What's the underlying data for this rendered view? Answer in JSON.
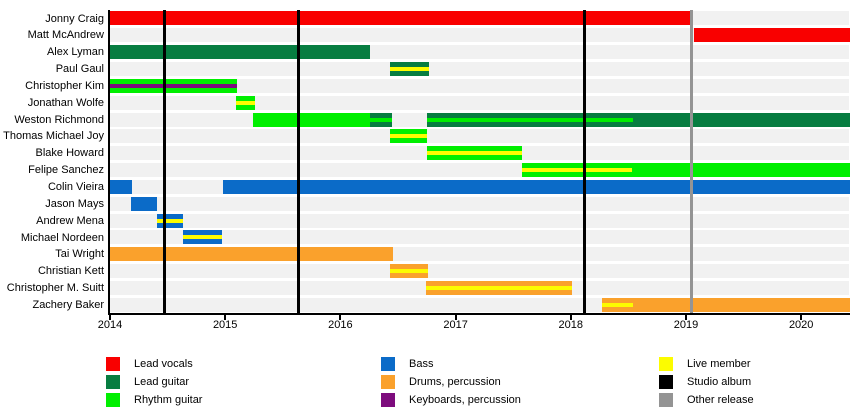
{
  "chart_data": {
    "type": "bar",
    "subtype": "band-membership-timeline-gantt",
    "title": "",
    "xlabel": "",
    "ylabel": "",
    "xlim": [
      2014.0,
      2020.42
    ],
    "x_ticks": [
      2014,
      2015,
      2016,
      2017,
      2018,
      2019,
      2020
    ],
    "grid": false,
    "members": [
      {
        "name": "Jonny Craig",
        "segments": [
          {
            "start": 2014.0,
            "end": 2019.05,
            "role": "lead_vocals"
          }
        ]
      },
      {
        "name": "Matt McAndrew",
        "segments": [
          {
            "start": 2019.07,
            "end": 2020.42,
            "role": "lead_vocals"
          }
        ]
      },
      {
        "name": "Alex Lyman",
        "segments": [
          {
            "start": 2014.0,
            "end": 2016.26,
            "role": "lead_guitar"
          }
        ]
      },
      {
        "name": "Paul Gaul",
        "segments": [
          {
            "start": 2016.43,
            "end": 2016.77,
            "role": "lead_guitar",
            "overlay": "live"
          }
        ]
      },
      {
        "name": "Christopher Kim",
        "segments": [
          {
            "start": 2014.0,
            "end": 2015.1,
            "role": "rhythm_guitar",
            "overlay": "keyboards"
          }
        ]
      },
      {
        "name": "Jonathan Wolfe",
        "segments": [
          {
            "start": 2015.09,
            "end": 2015.26,
            "role": "rhythm_guitar",
            "overlay": "live"
          }
        ]
      },
      {
        "name": "Weston Richmond",
        "segments": [
          {
            "start": 2015.24,
            "end": 2016.26,
            "role": "rhythm_guitar"
          },
          {
            "start": 2016.26,
            "end": 2016.45,
            "role": "lead_guitar",
            "overlay": "rhythm_guitar"
          },
          {
            "start": 2016.75,
            "end": 2018.54,
            "role": "lead_guitar",
            "overlay": "rhythm_guitar"
          },
          {
            "start": 2018.54,
            "end": 2020.42,
            "role": "lead_guitar"
          }
        ]
      },
      {
        "name": "Thomas Michael Joy",
        "segments": [
          {
            "start": 2016.43,
            "end": 2016.75,
            "role": "rhythm_guitar",
            "overlay": "live"
          }
        ]
      },
      {
        "name": "Blake Howard",
        "segments": [
          {
            "start": 2016.75,
            "end": 2017.58,
            "role": "rhythm_guitar",
            "overlay": "live"
          }
        ]
      },
      {
        "name": "Felipe Sanchez",
        "segments": [
          {
            "start": 2017.58,
            "end": 2018.53,
            "role": "rhythm_guitar",
            "overlay": "live"
          },
          {
            "start": 2018.53,
            "end": 2020.42,
            "role": "rhythm_guitar"
          }
        ]
      },
      {
        "name": "Colin Vieira",
        "segments": [
          {
            "start": 2014.0,
            "end": 2014.19,
            "role": "bass"
          },
          {
            "start": 2014.98,
            "end": 2020.42,
            "role": "bass"
          }
        ]
      },
      {
        "name": "Jason Mays",
        "segments": [
          {
            "start": 2014.18,
            "end": 2014.41,
            "role": "bass"
          }
        ]
      },
      {
        "name": "Andrew Mena",
        "segments": [
          {
            "start": 2014.41,
            "end": 2014.63,
            "role": "bass",
            "overlay": "live"
          }
        ]
      },
      {
        "name": "Michael Nordeen",
        "segments": [
          {
            "start": 2014.63,
            "end": 2014.97,
            "role": "bass",
            "overlay": "live"
          }
        ]
      },
      {
        "name": "Tai Wright",
        "segments": [
          {
            "start": 2014.0,
            "end": 2016.46,
            "role": "drums"
          }
        ]
      },
      {
        "name": "Christian Kett",
        "segments": [
          {
            "start": 2016.43,
            "end": 2016.76,
            "role": "drums",
            "overlay": "live"
          }
        ]
      },
      {
        "name": "Christopher M. Suitt",
        "segments": [
          {
            "start": 2016.74,
            "end": 2018.01,
            "role": "drums",
            "overlay": "live"
          }
        ]
      },
      {
        "name": "Zachery Baker",
        "segments": [
          {
            "start": 2018.27,
            "end": 2018.54,
            "role": "drums",
            "overlay": "live"
          },
          {
            "start": 2018.54,
            "end": 2020.42,
            "role": "drums"
          }
        ]
      }
    ],
    "releases": [
      {
        "year": 2014.47,
        "type": "studio_album"
      },
      {
        "year": 2015.64,
        "type": "studio_album"
      },
      {
        "year": 2018.12,
        "type": "studio_album"
      },
      {
        "year": 2019.05,
        "type": "other_release"
      }
    ]
  },
  "colors": {
    "lead_vocals": "#f90000",
    "lead_guitar": "#077d41",
    "rhythm_guitar": "#00ef00",
    "bass": "#0b6bc8",
    "drums": "#faa12c",
    "keyboards": "#7d0c7d",
    "live": "#fcfc00",
    "studio_album": "#000000",
    "other_release": "#949494"
  },
  "legend": {
    "columns": [
      [
        {
          "label": "Lead vocals",
          "color": "lead_vocals"
        },
        {
          "label": "Lead guitar",
          "color": "lead_guitar"
        },
        {
          "label": "Rhythm guitar",
          "color": "rhythm_guitar"
        }
      ],
      [
        {
          "label": "Bass",
          "color": "bass"
        },
        {
          "label": "Drums, percussion",
          "color": "drums"
        },
        {
          "label": "Keyboards, percussion",
          "color": "keyboards"
        }
      ],
      [
        {
          "label": "Live member",
          "color": "live"
        },
        {
          "label": "Studio album",
          "color": "studio_album"
        },
        {
          "label": "Other release",
          "color": "other_release"
        }
      ]
    ]
  }
}
